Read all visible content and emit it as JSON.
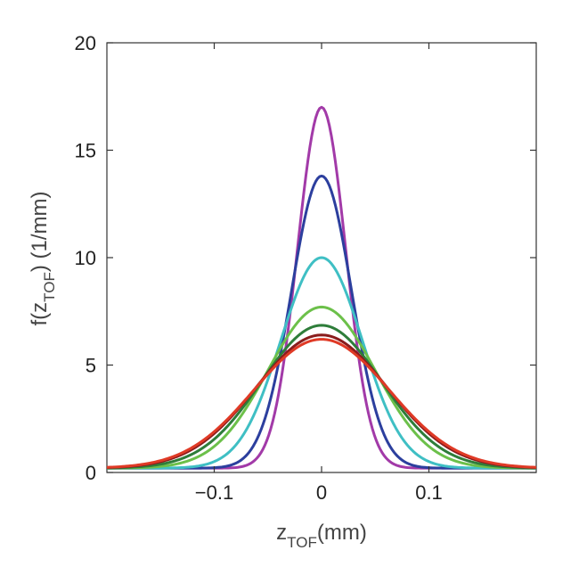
{
  "chart_data": {
    "type": "line",
    "xlabel": {
      "main": "z",
      "sub": "TOF",
      "unit": "(mm)"
    },
    "ylabel": {
      "pre": "f(z",
      "sub": "TOF",
      "post": ") (1/mm)"
    },
    "xlim": [
      -0.2,
      0.2
    ],
    "ylim": [
      0,
      20
    ],
    "xticks": [
      -0.1,
      0,
      0.1
    ],
    "xtick_labels": [
      "−0.1",
      "0",
      "0.1"
    ],
    "yticks": [
      0,
      5,
      10,
      15,
      20
    ],
    "ytick_labels": [
      "0",
      "5",
      "10",
      "15",
      "20"
    ],
    "grid": false,
    "baseline": 0.2,
    "series": [
      {
        "color": "#a23aa8",
        "peak": 17.0,
        "sigma": 0.0225
      },
      {
        "color": "#2c3f9e",
        "peak": 13.8,
        "sigma": 0.028
      },
      {
        "color": "#3fbfc4",
        "peak": 10.0,
        "sigma": 0.038
      },
      {
        "color": "#6cc04a",
        "peak": 7.7,
        "sigma": 0.05
      },
      {
        "color": "#2e7d3a",
        "peak": 6.85,
        "sigma": 0.056
      },
      {
        "color": "#8a1c1c",
        "peak": 6.4,
        "sigma": 0.061
      },
      {
        "color": "#e03a26",
        "peak": 6.2,
        "sigma": 0.063
      }
    ]
  }
}
